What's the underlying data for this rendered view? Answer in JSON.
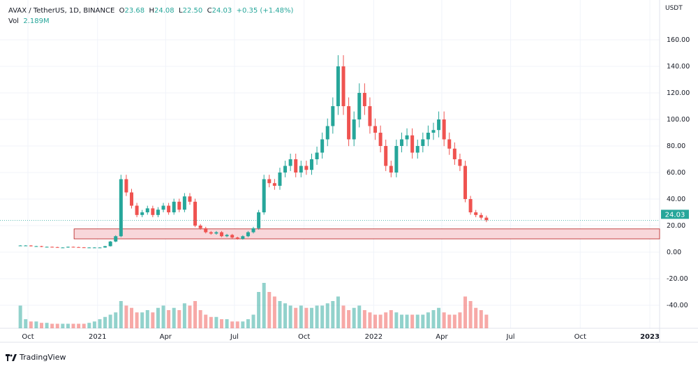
{
  "header": {
    "symbol": "AVAX / TetherUS, 1D, BINANCE",
    "o_label": "O",
    "o": "23.68",
    "h_label": "H",
    "h": "24.08",
    "l_label": "L",
    "l": "22.50",
    "c_label": "C",
    "c": "24.03",
    "change": "+0.35 (+1.48%)",
    "vol_label": "Vol",
    "vol": "2.189M"
  },
  "logo": "TradingView",
  "chart_data": {
    "type": "candlestick",
    "currency": "USDT",
    "ylim": [
      -50,
      175
    ],
    "yticks": [
      "160.00",
      "140.00",
      "120.00",
      "100.00",
      "80.00",
      "60.00",
      "40.00",
      "20.00",
      "0.00",
      "-20.00",
      "-40.00"
    ],
    "ytick_values": [
      160,
      140,
      120,
      100,
      80,
      60,
      40,
      20,
      0,
      -20,
      -40
    ],
    "xticks": [
      "Oct",
      "2021",
      "Apr",
      "Jul",
      "Oct",
      "2022",
      "Apr",
      "Jul",
      "Oct",
      "2023"
    ],
    "xtick_dates": [
      "2020-10-01",
      "2021-01-01",
      "2021-04-01",
      "2021-07-01",
      "2021-10-01",
      "2022-01-01",
      "2022-04-01",
      "2022-07-01",
      "2022-10-01",
      "2023-01-01"
    ],
    "x_range": [
      "2020-09-14",
      "2023-01-15"
    ],
    "series_start": "2020-09-21",
    "interval": "weekly (approx.)",
    "closes": [
      5,
      5,
      4.5,
      4.5,
      4,
      4,
      3.8,
      3.5,
      3.5,
      4,
      3.8,
      3.6,
      3.5,
      3.5,
      3.5,
      3.5,
      4.5,
      8,
      12,
      55,
      45,
      35,
      28,
      30,
      33,
      28,
      32,
      35,
      30,
      38,
      32,
      42,
      38,
      20,
      18,
      15,
      14,
      15,
      12,
      13,
      11,
      10,
      12,
      15,
      18,
      30,
      55,
      52,
      50,
      60,
      65,
      70,
      60,
      65,
      62,
      70,
      75,
      85,
      95,
      110,
      140,
      110,
      85,
      100,
      120,
      110,
      95,
      90,
      80,
      65,
      60,
      80,
      85,
      88,
      75,
      80,
      85,
      90,
      92,
      100,
      85,
      78,
      70,
      65,
      40,
      30,
      28,
      26,
      24.03
    ],
    "volume_relative": [
      0.5,
      0.2,
      0.15,
      0.15,
      0.12,
      0.12,
      0.1,
      0.1,
      0.1,
      0.1,
      0.1,
      0.1,
      0.1,
      0.12,
      0.15,
      0.2,
      0.25,
      0.3,
      0.35,
      0.6,
      0.5,
      0.45,
      0.35,
      0.35,
      0.4,
      0.35,
      0.45,
      0.5,
      0.4,
      0.45,
      0.4,
      0.55,
      0.5,
      0.6,
      0.4,
      0.3,
      0.25,
      0.25,
      0.2,
      0.2,
      0.15,
      0.15,
      0.15,
      0.2,
      0.3,
      0.8,
      1.0,
      0.8,
      0.7,
      0.6,
      0.55,
      0.5,
      0.45,
      0.5,
      0.45,
      0.45,
      0.5,
      0.5,
      0.55,
      0.6,
      0.7,
      0.5,
      0.4,
      0.45,
      0.5,
      0.4,
      0.35,
      0.3,
      0.3,
      0.35,
      0.4,
      0.35,
      0.3,
      0.3,
      0.3,
      0.3,
      0.3,
      0.35,
      0.4,
      0.45,
      0.35,
      0.3,
      0.3,
      0.35,
      0.7,
      0.6,
      0.45,
      0.4,
      0.3
    ],
    "last_price": "24.03",
    "zone": {
      "low": 10,
      "high": 17.5,
      "start": "2020-12-01"
    },
    "colors": {
      "up": "#26a69a",
      "down": "#ef5350",
      "zone_fill": "#f8d7da",
      "zone_border": "#b71c1c",
      "last_price_bg": "#26a69a"
    }
  }
}
